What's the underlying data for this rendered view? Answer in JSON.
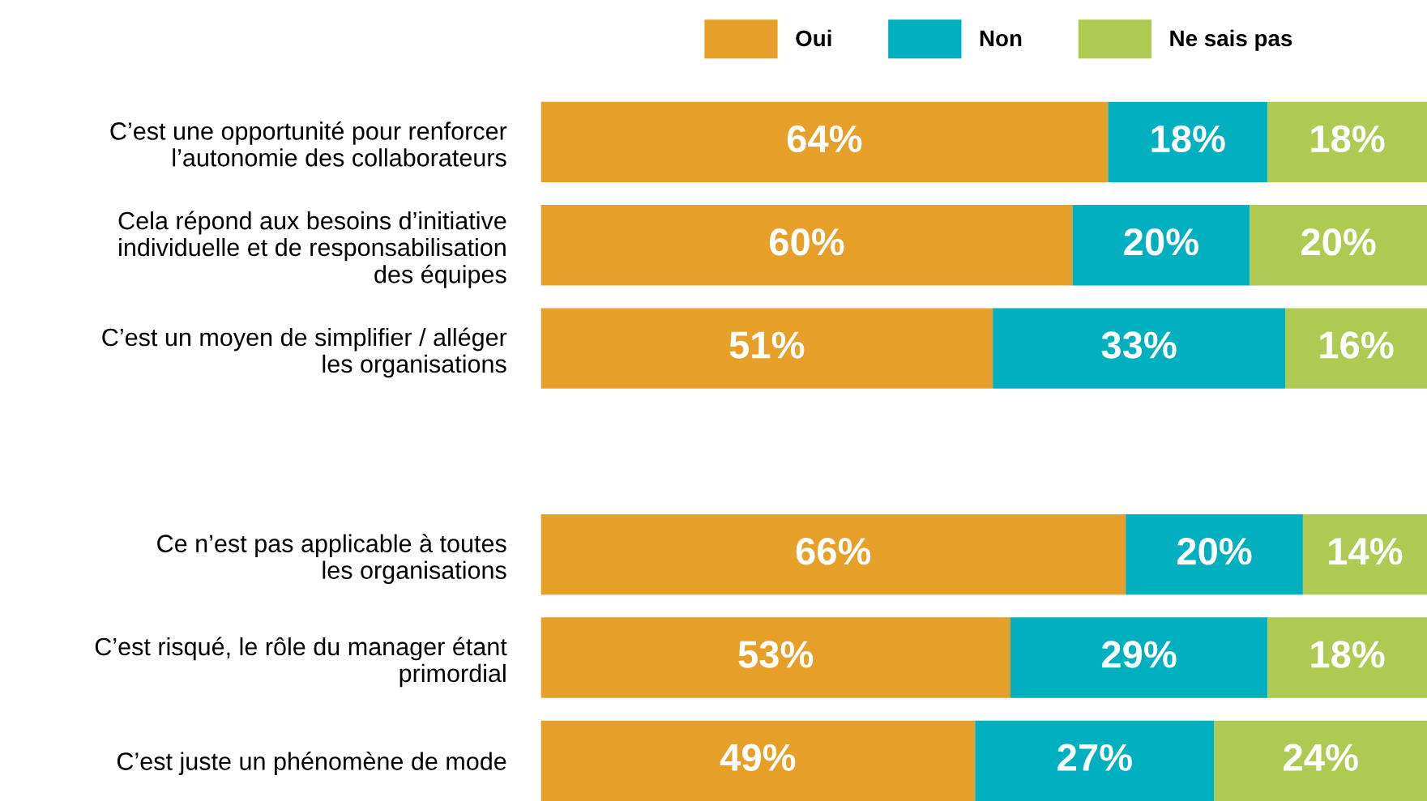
{
  "chart_data": {
    "type": "bar",
    "orientation": "horizontal",
    "stacked": true,
    "legend": "top",
    "grid": false,
    "xlim": [
      0,
      100
    ],
    "tick_labels": "y",
    "categories": [
      "C’est une opportunité pour renforcer\nl’autonomie des collaborateurs",
      "Cela répond aux besoins d’initiative\nindividuelle et de responsabilisation\ndes équipes",
      "C’est un moyen de simplifier / alléger\nles organisations",
      null,
      "Ce n’est pas applicable à toutes\nles organisations",
      "C’est risqué, le rôle du manager étant\nprimordial",
      "C’est juste un phénomène de mode"
    ],
    "series": [
      {
        "name": "Oui",
        "color": "#e6a02a",
        "values": [
          64,
          60,
          51,
          null,
          66,
          53,
          49
        ],
        "value_labels": [
          "64%",
          "60%",
          "51%",
          null,
          "66%",
          "53%",
          "49%"
        ]
      },
      {
        "name": "Non",
        "color": "#00b0bf",
        "values": [
          18,
          20,
          33,
          null,
          20,
          29,
          27
        ],
        "value_labels": [
          "18%",
          "20%",
          "33%",
          null,
          "20%",
          "29%",
          "27%"
        ]
      },
      {
        "name": "Ne sais pas",
        "color": "#afca52",
        "values": [
          18,
          20,
          16,
          null,
          14,
          18,
          24
        ],
        "value_labels": [
          "18%",
          "20%",
          "16%",
          null,
          "14%",
          "18%",
          "24%"
        ]
      }
    ]
  }
}
